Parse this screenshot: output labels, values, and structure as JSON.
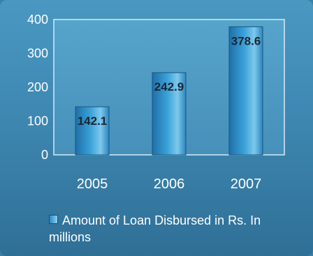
{
  "chart_data": {
    "type": "bar",
    "categories": [
      "2005",
      "2006",
      "2007"
    ],
    "series": [
      {
        "name": "Amount of Loan Disbursed in Rs. In millions",
        "values": [
          142.1,
          242.9,
          378.6
        ]
      }
    ],
    "data_labels": [
      "142.1",
      "242.9",
      "378.6"
    ],
    "title": "",
    "xlabel": "",
    "ylabel": "",
    "ylim": [
      0,
      400
    ],
    "yticks": [
      "0",
      "100",
      "200",
      "300",
      "400"
    ],
    "grid": false,
    "legend_position": "bottom",
    "colors": {
      "bar_dark": "#1f74b0",
      "bar_light": "#8fd0f0",
      "plot_area": "#4f9cc6"
    }
  }
}
